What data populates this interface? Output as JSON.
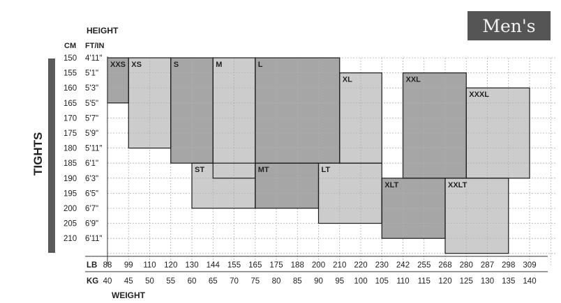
{
  "title": "Men's",
  "side_label": "TIGHTS",
  "chart_data": {
    "type": "heatmap",
    "y_header": "HEIGHT",
    "y_units": [
      "CM",
      "FT/IN"
    ],
    "y_cm": [
      "150",
      "155",
      "160",
      "165",
      "170",
      "175",
      "180",
      "185",
      "190",
      "195",
      "200",
      "205",
      "210"
    ],
    "y_ftin": [
      "4'11\"",
      "5'1\"",
      "5'3\"",
      "5'5\"",
      "5'7\"",
      "5'9\"",
      "5'11\"",
      "6'1\"",
      "6'3\"",
      "6'5\"",
      "6'7\"",
      "6'9\"",
      "6'11\""
    ],
    "x_label": "WEIGHT",
    "x_lb_label": "LB",
    "x_kg_label": "KG",
    "x_lb": [
      "88",
      "99",
      "110",
      "120",
      "130",
      "144",
      "155",
      "165",
      "175",
      "188",
      "200",
      "210",
      "220",
      "230",
      "242",
      "255",
      "268",
      "280",
      "287",
      "298",
      "309"
    ],
    "x_kg": [
      "40",
      "45",
      "50",
      "55",
      "60",
      "65",
      "70",
      "75",
      "80",
      "85",
      "90",
      "95",
      "100",
      "105",
      "110",
      "115",
      "120",
      "125",
      "130",
      "135",
      "140"
    ],
    "colors": {
      "light": "#cccccc",
      "dark": "#a6a6a6"
    },
    "sizes": [
      {
        "label": "XXS",
        "shade": "dark",
        "x_kg": [
          40,
          45
        ],
        "height_cm": [
          150,
          165
        ]
      },
      {
        "label": "XS",
        "shade": "light",
        "x_kg": [
          45,
          55
        ],
        "height_cm": [
          150,
          180
        ]
      },
      {
        "label": "S",
        "shade": "dark",
        "x_kg": [
          55,
          65
        ],
        "height_cm": [
          150,
          185
        ]
      },
      {
        "label": "M",
        "shade": "light",
        "x_kg": [
          65,
          75
        ],
        "height_cm": [
          150,
          190
        ]
      },
      {
        "label": "L",
        "shade": "dark",
        "x_kg": [
          75,
          95
        ],
        "height_cm": [
          150,
          185
        ]
      },
      {
        "label": "XL",
        "shade": "light",
        "x_kg": [
          95,
          105
        ],
        "height_cm": [
          155,
          185
        ]
      },
      {
        "label": "XXL",
        "shade": "dark",
        "x_kg": [
          110,
          125
        ],
        "height_cm": [
          155,
          190
        ]
      },
      {
        "label": "XXXL",
        "shade": "light",
        "x_kg": [
          125,
          140
        ],
        "height_cm": [
          160,
          190
        ]
      },
      {
        "label": "ST",
        "shade": "light",
        "x_kg": [
          60,
          75
        ],
        "height_cm": [
          185,
          200
        ]
      },
      {
        "label": "MT",
        "shade": "dark",
        "x_kg": [
          75,
          90
        ],
        "height_cm": [
          185,
          200
        ]
      },
      {
        "label": "LT",
        "shade": "light",
        "x_kg": [
          90,
          105
        ],
        "height_cm": [
          185,
          205
        ]
      },
      {
        "label": "XLT",
        "shade": "dark",
        "x_kg": [
          105,
          120
        ],
        "height_cm": [
          190,
          210
        ]
      },
      {
        "label": "XXLT",
        "shade": "light",
        "x_kg": [
          120,
          135
        ],
        "height_cm": [
          190,
          215
        ]
      }
    ]
  }
}
